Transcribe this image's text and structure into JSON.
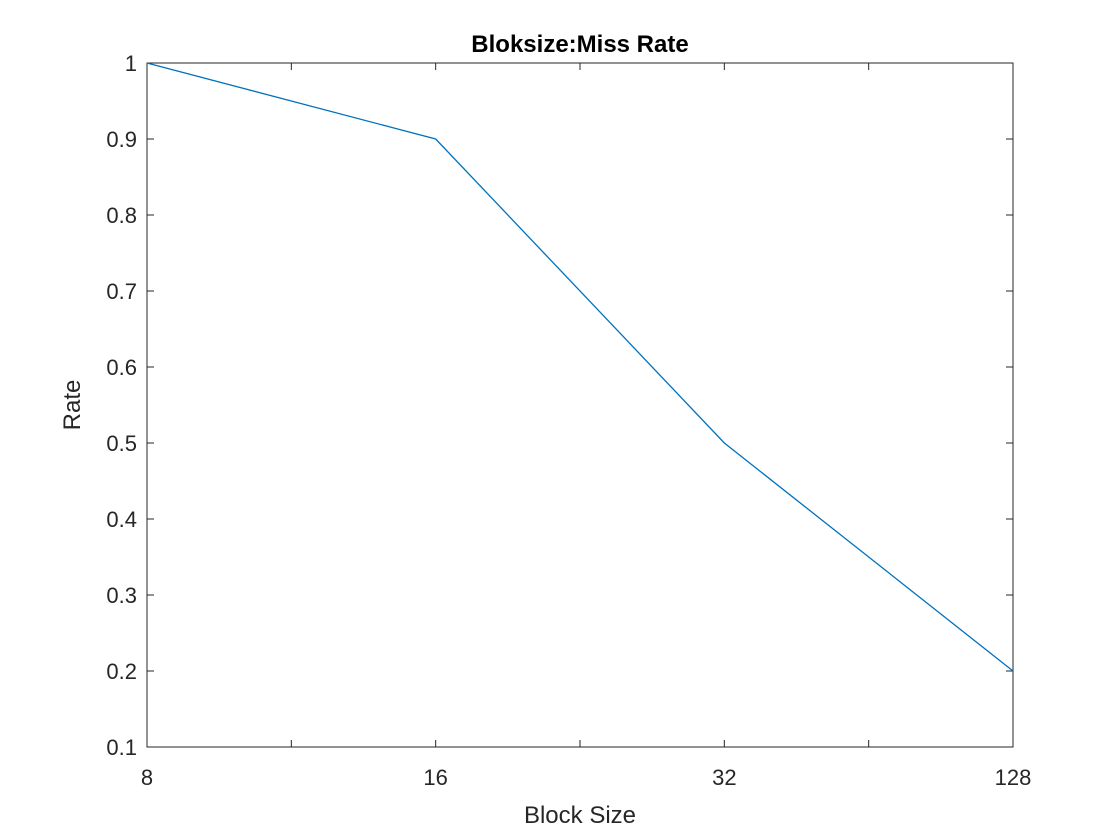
{
  "chart_data": {
    "type": "line",
    "title": "Bloksize:Miss Rate",
    "xlabel": "Block Size",
    "ylabel": "Rate",
    "categories": [
      "8",
      "16",
      "32",
      "128"
    ],
    "series": [
      {
        "values": [
          1.0,
          0.9,
          0.5,
          0.2
        ]
      }
    ],
    "ylim": [
      0.1,
      1
    ],
    "yticks": [
      "0.1",
      "0.2",
      "0.3",
      "0.4",
      "0.5",
      "0.6",
      "0.7",
      "0.8",
      "0.9",
      "1"
    ],
    "grid": false,
    "line_color": "#0072BD"
  }
}
